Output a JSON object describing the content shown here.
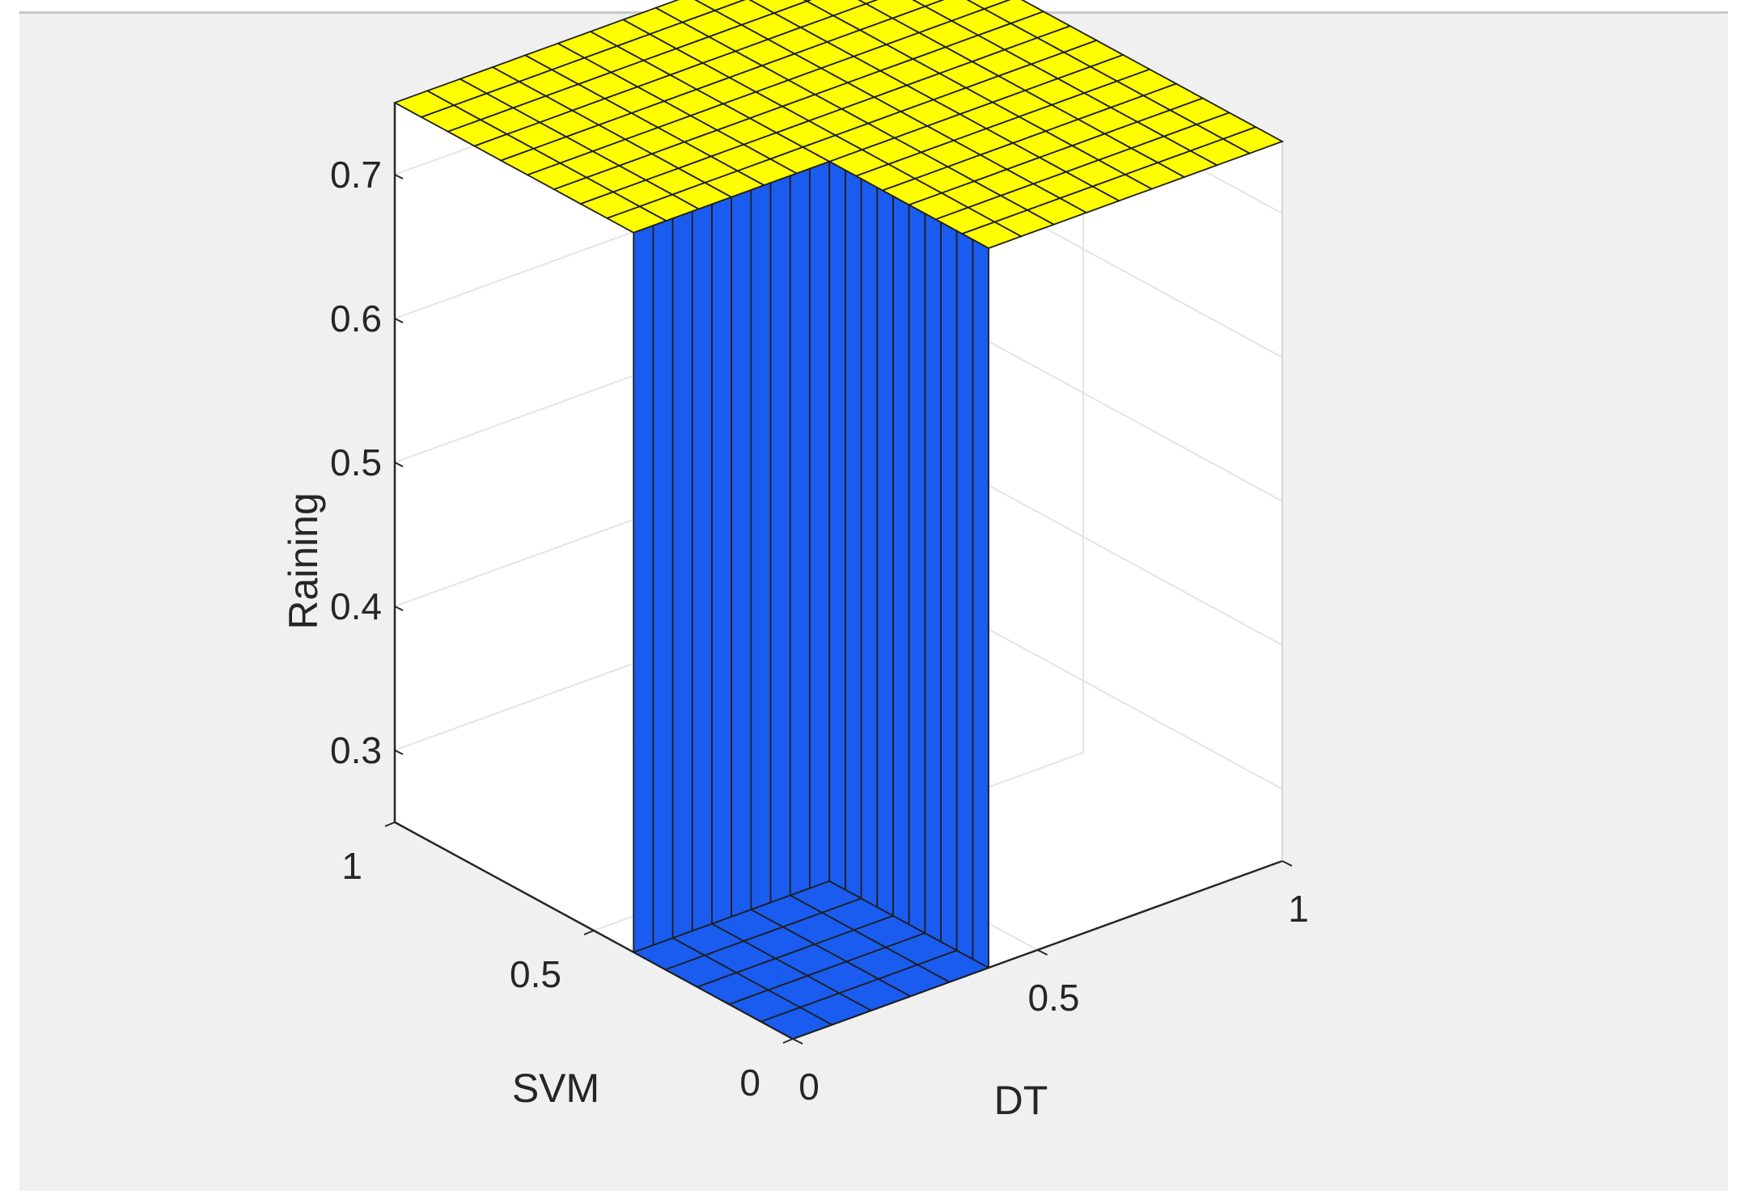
{
  "chart_data": {
    "type": "surface",
    "title": "",
    "xlabel": "DT",
    "ylabel": "SVM",
    "zlabel": "Raining",
    "xlim": [
      0,
      1
    ],
    "ylim": [
      0,
      1
    ],
    "zlim": [
      0.25,
      0.75
    ],
    "x_ticks": [
      "0",
      "0.5",
      "1"
    ],
    "y_ticks": [
      "0",
      "0.5",
      "1"
    ],
    "z_ticks": [
      "0.3",
      "0.4",
      "0.5",
      "0.6",
      "0.7"
    ],
    "grid": true,
    "colormap_low": "#1a5cf0",
    "colormap_high": "#ffff00",
    "levels": {
      "low": 0.25,
      "high": 0.75
    },
    "low_region": {
      "x_max": 0.4,
      "y_max": 0.4
    },
    "grid_size": 15
  }
}
